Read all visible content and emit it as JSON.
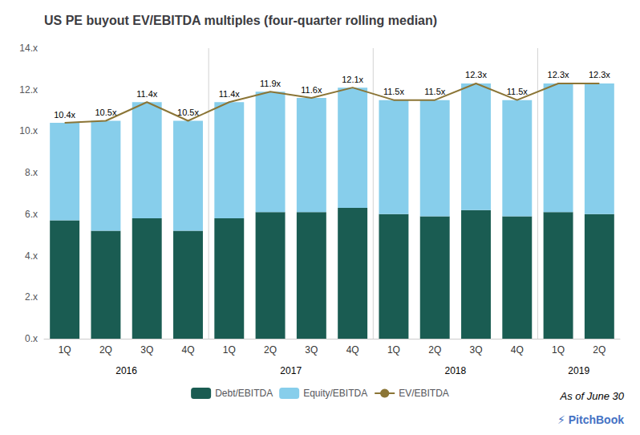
{
  "chart_data": {
    "type": "bar",
    "title": "US PE buyout EV/EBITDA multiples (four-quarter rolling median)",
    "categories": [
      "1Q",
      "2Q",
      "3Q",
      "4Q",
      "1Q",
      "2Q",
      "3Q",
      "4Q",
      "1Q",
      "2Q",
      "3Q",
      "4Q",
      "1Q",
      "2Q"
    ],
    "years": [
      "2016",
      "2016",
      "2016",
      "2016",
      "2017",
      "2017",
      "2017",
      "2017",
      "2018",
      "2018",
      "2018",
      "2018",
      "2019",
      "2019"
    ],
    "stacked": true,
    "series": [
      {
        "name": "Debt/EBITDA",
        "type": "bar",
        "color": "#1a5c52",
        "values": [
          5.7,
          5.2,
          5.8,
          5.2,
          5.8,
          6.1,
          6.1,
          6.3,
          6.0,
          5.9,
          6.2,
          5.9,
          6.1,
          6.0
        ]
      },
      {
        "name": "Equity/EBITDA",
        "type": "bar",
        "color": "#87ceeb",
        "values": [
          4.7,
          5.3,
          5.6,
          5.3,
          5.6,
          5.8,
          5.5,
          5.8,
          5.5,
          5.6,
          6.1,
          5.6,
          6.2,
          6.3
        ]
      },
      {
        "name": "EV/EBITDA",
        "type": "line",
        "color": "#8B7536",
        "data_labels": true,
        "values": [
          10.4,
          10.5,
          11.4,
          10.5,
          11.4,
          11.9,
          11.6,
          12.1,
          11.5,
          11.5,
          12.3,
          11.5,
          12.3,
          12.3
        ],
        "value_labels": [
          "10.4x",
          "10.5x",
          "11.4x",
          "10.5x",
          "11.4x",
          "11.9x",
          "11.6x",
          "12.1x",
          "11.5x",
          "11.5x",
          "12.3x",
          "11.5x",
          "12.3x",
          "12.3x"
        ]
      }
    ],
    "ylim": [
      0,
      14
    ],
    "yticks": [
      {
        "value": 0,
        "label": "0.x"
      },
      {
        "value": 2,
        "label": "2.x"
      },
      {
        "value": 4,
        "label": "4.x"
      },
      {
        "value": 6,
        "label": "6.x"
      },
      {
        "value": 8,
        "label": "8.x"
      },
      {
        "value": 10,
        "label": "10.x"
      },
      {
        "value": 12,
        "label": "12.x"
      },
      {
        "value": 14,
        "label": "14.x"
      }
    ],
    "grid": false,
    "legend": "bottom",
    "annotations": [
      "As of June 30",
      "⚡ PitchBook"
    ]
  }
}
